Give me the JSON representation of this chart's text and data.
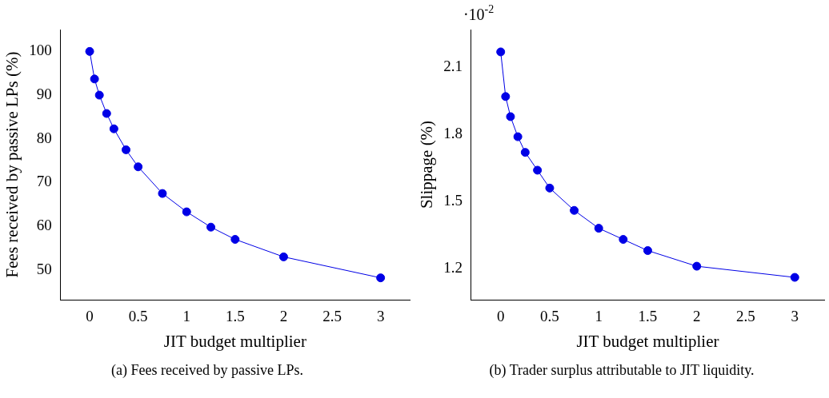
{
  "chart_data": [
    {
      "type": "line",
      "title": "(a) Fees received by passive LPs.",
      "xlabel": "JIT budget multiplier",
      "ylabel": "Fees received by passive LPs (%)",
      "x": [
        0,
        0.05,
        0.1,
        0.175,
        0.25,
        0.375,
        0.5,
        0.75,
        1,
        1.25,
        1.5,
        2,
        3
      ],
      "series": [
        {
          "color": "#0000e6",
          "values": [
            100,
            93.7,
            90.0,
            85.8,
            82.3,
            77.5,
            73.6,
            67.5,
            63.3,
            59.8,
            57.0,
            53.0,
            48.2
          ]
        }
      ],
      "xlim": [
        -0.3,
        3.3
      ],
      "xticks": [
        0,
        0.5,
        1,
        1.5,
        2,
        2.5,
        3
      ],
      "ylim": [
        43.2,
        105
      ],
      "yticks": [
        50,
        60,
        70,
        80,
        90,
        100
      ],
      "grid": false,
      "legend": false,
      "marker": "circle",
      "line_style": "solid"
    },
    {
      "type": "line",
      "title": "(b) Trader surplus attributable to JIT liquidity.",
      "xlabel": "JIT budget multiplier",
      "ylabel": "Slippage (%)",
      "annotations": [
        "·10$^{-2}$"
      ],
      "x": [
        0,
        0.05,
        0.1,
        0.175,
        0.25,
        0.375,
        0.5,
        0.75,
        1,
        1.25,
        1.5,
        2,
        3
      ],
      "series": [
        {
          "color": "#0000e6",
          "values": [
            2.17,
            1.97,
            1.88,
            1.79,
            1.72,
            1.64,
            1.56,
            1.46,
            1.38,
            1.33,
            1.28,
            1.21,
            1.16
          ]
        }
      ],
      "xlim": [
        -0.3,
        3.3
      ],
      "xticks": [
        0,
        0.5,
        1,
        1.5,
        2,
        2.5,
        3
      ],
      "ylim": [
        1.06,
        2.27
      ],
      "yticks": [
        1.2,
        1.5,
        1.8,
        2.1
      ],
      "grid": false,
      "legend": false,
      "marker": "circle",
      "line_style": "solid"
    }
  ]
}
